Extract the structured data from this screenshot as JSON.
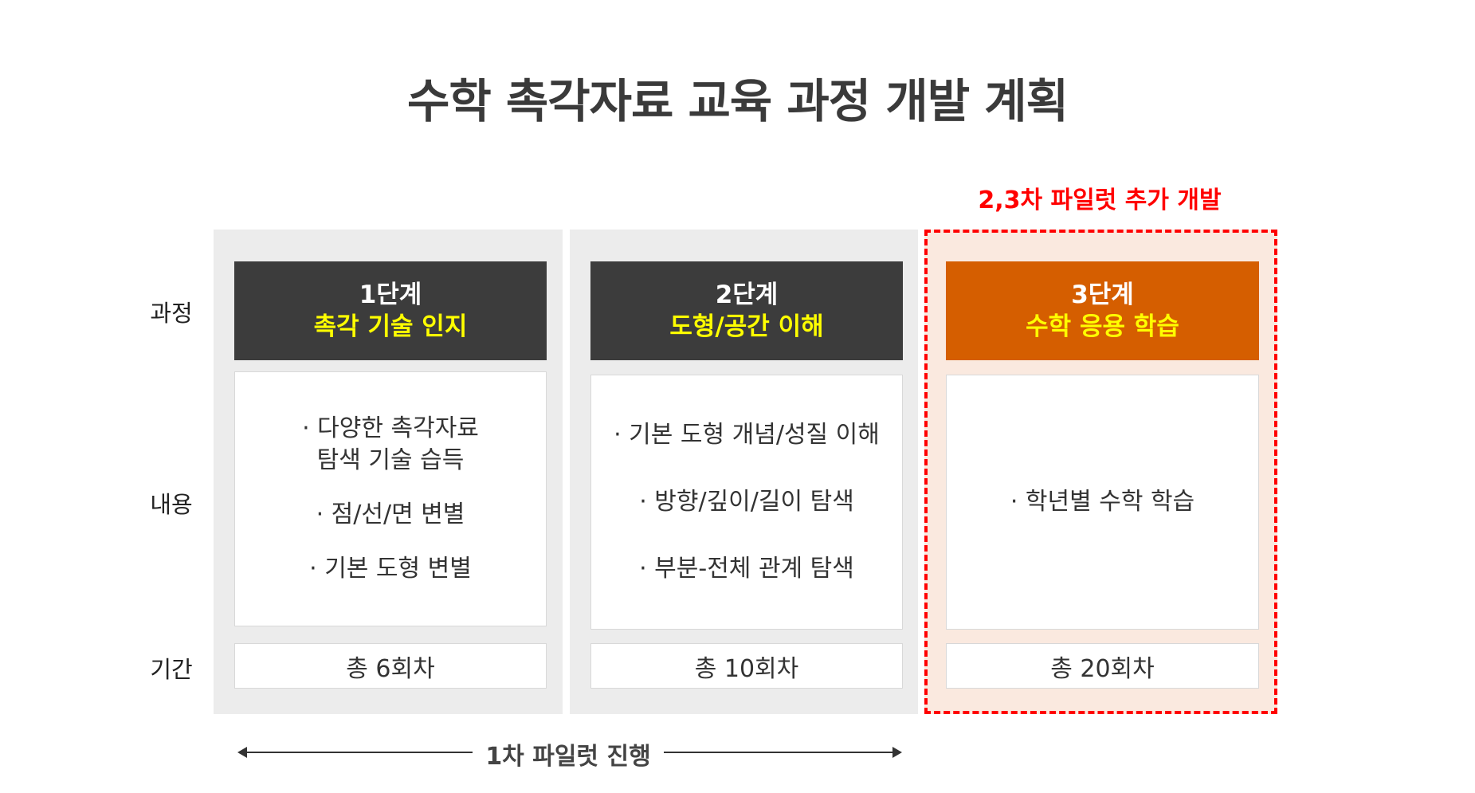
{
  "title": "수학 촉각자료 교육 과정 개발 계획",
  "row_labels": {
    "course": "과정",
    "content": "내용",
    "period": "기간"
  },
  "stages": [
    {
      "stage": "1단계",
      "name": "촉각 기술 인지",
      "items": [
        "· 다양한 촉각자료\n탐색 기술 습득",
        "· 점/선/면 변별",
        "· 기본 도형 변별"
      ],
      "period": "총 6회차"
    },
    {
      "stage": "2단계",
      "name": "도형/공간 이해",
      "items": [
        "· 기본 도형 개념/성질 이해",
        "· 방향/깊이/길이 탐색",
        "· 부분-전체 관계 탐색"
      ],
      "period": "총 10회차"
    },
    {
      "stage": "3단계",
      "name": "수학 응용 학습",
      "items": [
        "· 학년별 수학 학습"
      ],
      "period": "총 20회차"
    }
  ],
  "additional_label": "2,3차 파일럿 추가 개발",
  "pilot_label": "1차 파일럿 진행",
  "colors": {
    "header_dark": "#3c3c3c",
    "header_orange": "#d55e00",
    "highlight_text": "#ffff00",
    "dashed_border": "#ff0000",
    "stage3_bg": "#fae9df"
  }
}
